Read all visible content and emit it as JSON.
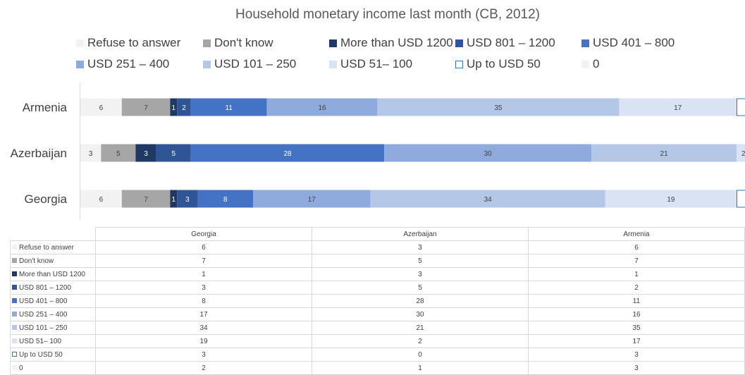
{
  "chart_data": {
    "type": "bar",
    "orientation": "horizontal",
    "stacked": true,
    "title": "Household monetary income last month (CB, 2012)",
    "categories": [
      "Armenia",
      "Azerbaijan",
      "Georgia"
    ],
    "legend_position": "top",
    "series": [
      {
        "name": "Refuse to answer",
        "color": "#f2f2f2",
        "values": [
          6,
          3,
          6
        ]
      },
      {
        "name": "Don't know",
        "color": "#a6a6a6",
        "values": [
          7,
          5,
          7
        ]
      },
      {
        "name": "More than USD 1200",
        "color": "#1f3864",
        "values": [
          1,
          3,
          1
        ]
      },
      {
        "name": "USD 801 – 1200",
        "color": "#2f5597",
        "values": [
          2,
          5,
          3
        ]
      },
      {
        "name": "USD 401 – 800",
        "color": "#4472c4",
        "values": [
          11,
          28,
          8
        ]
      },
      {
        "name": "USD 251 – 400",
        "color": "#8faadc",
        "values": [
          16,
          30,
          17
        ]
      },
      {
        "name": "USD 101 – 250",
        "color": "#b4c7e7",
        "values": [
          35,
          21,
          34
        ]
      },
      {
        "name": "USD 51– 100",
        "color": "#dae3f3",
        "values": [
          17,
          2,
          19
        ]
      },
      {
        "name": "Up to USD 50",
        "color": "#ffffff",
        "outline": "#2e75b6",
        "values": [
          3,
          0,
          3
        ]
      },
      {
        "name": "0",
        "color": "#f2f2f2",
        "values": [
          3,
          1,
          2
        ]
      }
    ],
    "table": {
      "columns": [
        "Georgia",
        "Azerbaijan",
        "Armenia"
      ],
      "rows": [
        {
          "label": "Refuse to answer",
          "values": [
            "6",
            "3",
            "6"
          ]
        },
        {
          "label": "Don't know",
          "values": [
            "7",
            "5",
            "7"
          ]
        },
        {
          "label": "More than USD 1200",
          "values": [
            "1",
            "3",
            "1"
          ]
        },
        {
          "label": "USD 801 – 1200",
          "values": [
            "3",
            "5",
            "2"
          ]
        },
        {
          "label": "USD 401 – 800",
          "values": [
            "8",
            "28",
            "11"
          ]
        },
        {
          "label": "USD 251 – 400",
          "values": [
            "17",
            "30",
            "16"
          ]
        },
        {
          "label": "USD 101 – 250",
          "values": [
            "34",
            "21",
            "35"
          ]
        },
        {
          "label": "USD 51– 100",
          "values": [
            "19",
            "2",
            "17"
          ]
        },
        {
          "label": "Up to USD 50",
          "values": [
            "3",
            "0",
            "3"
          ]
        },
        {
          "label": "0",
          "values": [
            "2",
            "1",
            "3"
          ]
        }
      ]
    }
  }
}
